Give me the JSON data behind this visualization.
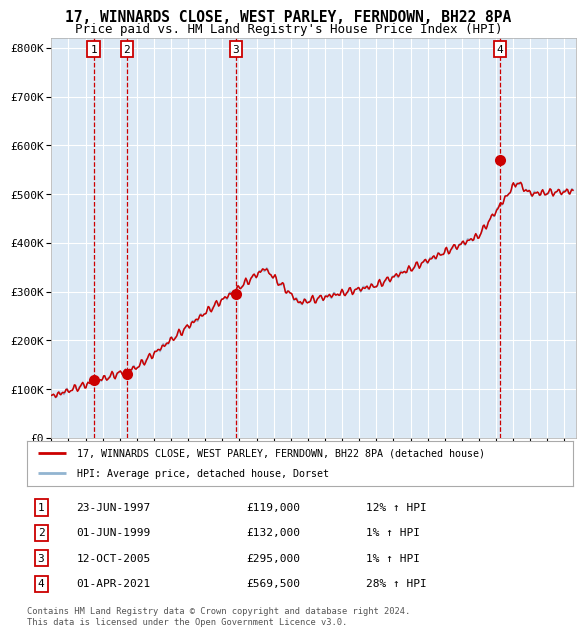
{
  "title_line1": "17, WINNARDS CLOSE, WEST PARLEY, FERNDOWN, BH22 8PA",
  "title_line2": "Price paid vs. HM Land Registry's House Price Index (HPI)",
  "ylim": [
    0,
    820000
  ],
  "yticks": [
    0,
    100000,
    200000,
    300000,
    400000,
    500000,
    600000,
    700000,
    800000
  ],
  "ytick_labels": [
    "£0",
    "£100K",
    "£200K",
    "£300K",
    "£400K",
    "£500K",
    "£600K",
    "£700K",
    "£800K"
  ],
  "xmin": 1995.0,
  "xmax": 2025.7,
  "plot_bg_color": "#dce9f5",
  "grid_color": "#ffffff",
  "hpi_line_color": "#92b4d0",
  "price_line_color": "#cc0000",
  "sale_marker_color": "#cc0000",
  "dashed_line_color": "#cc0000",
  "transaction_box_color": "#cc0000",
  "sales": [
    {
      "num": 1,
      "year": 1997.47,
      "price": 119000
    },
    {
      "num": 2,
      "year": 1999.41,
      "price": 132000
    },
    {
      "num": 3,
      "year": 2005.78,
      "price": 295000
    },
    {
      "num": 4,
      "year": 2021.25,
      "price": 569500
    }
  ],
  "legend_line1": "17, WINNARDS CLOSE, WEST PARLEY, FERNDOWN, BH22 8PA (detached house)",
  "legend_line2": "HPI: Average price, detached house, Dorset",
  "table_rows": [
    {
      "num": 1,
      "date": "23-JUN-1997",
      "price": "£119,000",
      "pct": "12% ↑ HPI"
    },
    {
      "num": 2,
      "date": "01-JUN-1999",
      "price": "£132,000",
      "pct": "1% ↑ HPI"
    },
    {
      "num": 3,
      "date": "12-OCT-2005",
      "price": "£295,000",
      "pct": "1% ↑ HPI"
    },
    {
      "num": 4,
      "date": "01-APR-2021",
      "price": "£569,500",
      "pct": "28% ↑ HPI"
    }
  ],
  "footer": "Contains HM Land Registry data © Crown copyright and database right 2024.\nThis data is licensed under the Open Government Licence v3.0."
}
